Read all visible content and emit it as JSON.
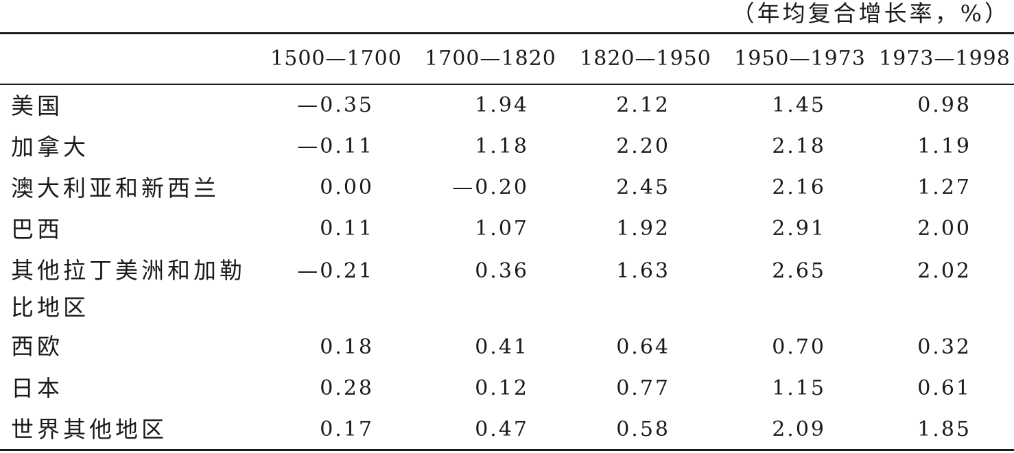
{
  "unit_note": "（年均复合增长率，%）",
  "columns": [
    "1500—1700",
    "1700—1820",
    "1820—1950",
    "1950—1973",
    "1973—1998"
  ],
  "rows": [
    {
      "region": "美国",
      "values": [
        "—0.35",
        "1.94",
        "2.12",
        "1.45",
        "0.98"
      ]
    },
    {
      "region": "加拿大",
      "values": [
        "—0.11",
        "1.18",
        "2.20",
        "2.18",
        "1.19"
      ]
    },
    {
      "region": "澳大利亚和新西兰",
      "values": [
        "0.00",
        "—0.20",
        "2.45",
        "2.16",
        "1.27"
      ]
    },
    {
      "region": "巴西",
      "values": [
        "0.11",
        "1.07",
        "1.92",
        "2.91",
        "2.00"
      ]
    },
    {
      "region": "其他拉丁美洲和加勒比地区",
      "values": [
        "—0.21",
        "0.36",
        "1.63",
        "2.65",
        "2.02"
      ]
    },
    {
      "region": "西欧",
      "values": [
        "0.18",
        "0.41",
        "0.64",
        "0.70",
        "0.32"
      ]
    },
    {
      "region": "日本",
      "values": [
        "0.28",
        "0.12",
        "0.77",
        "1.15",
        "0.61"
      ]
    },
    {
      "region": "世界其他地区",
      "values": [
        "0.17",
        "0.47",
        "0.58",
        "2.09",
        "1.85"
      ]
    }
  ]
}
